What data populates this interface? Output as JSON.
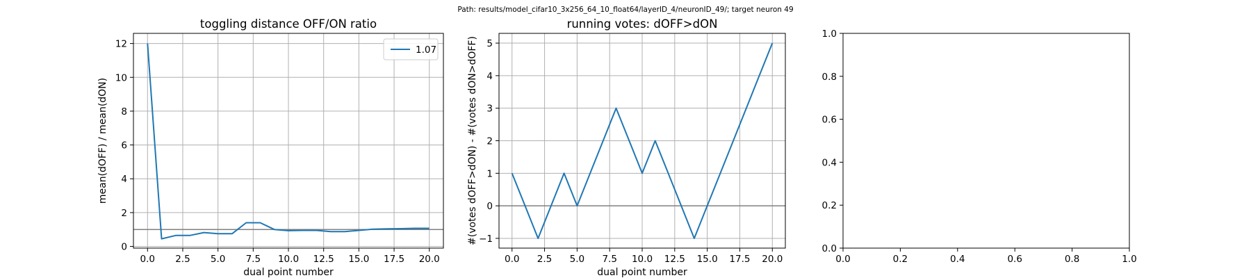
{
  "suptitle": "Path: results/model_cifar10_3x256_64_10_float64/layerID_4/neuronID_49/; target neuron 49",
  "colors": {
    "series": "#1f77b4",
    "refline": "#808080"
  },
  "chart_data": [
    {
      "type": "line",
      "title": "toggling distance OFF/ON ratio",
      "xlabel": "dual point number",
      "ylabel": "mean(dOFF) / mean(dON)",
      "xlim": [
        -1,
        21
      ],
      "ylim": [
        -0.1,
        12.6
      ],
      "xticks": [
        0,
        2.5,
        5,
        7.5,
        10,
        12.5,
        15,
        17.5,
        20
      ],
      "xtick_labels": [
        "0.0",
        "2.5",
        "5.0",
        "7.5",
        "10.0",
        "12.5",
        "15.0",
        "17.5",
        "20.0"
      ],
      "yticks": [
        0,
        2,
        4,
        6,
        8,
        10,
        12
      ],
      "ytick_labels": [
        "0",
        "2",
        "4",
        "6",
        "8",
        "10",
        "12"
      ],
      "grid": true,
      "hline": 1,
      "legend": {
        "placement": "upper right",
        "entries": [
          "1.07"
        ]
      },
      "series": [
        {
          "name": "1.07",
          "x": [
            0,
            1,
            2,
            3,
            4,
            5,
            6,
            7,
            8,
            9,
            10,
            11,
            12,
            13,
            14,
            15,
            16,
            17,
            18,
            19,
            20
          ],
          "y": [
            12.0,
            0.45,
            0.65,
            0.65,
            0.82,
            0.75,
            0.75,
            1.4,
            1.4,
            1.0,
            0.93,
            0.95,
            0.95,
            0.88,
            0.88,
            0.95,
            1.02,
            1.04,
            1.05,
            1.07,
            1.07
          ]
        }
      ]
    },
    {
      "type": "line",
      "title": "running votes: dOFF>dON",
      "xlabel": "dual point number",
      "ylabel": "#(votes dOFF>dON) - #(votes dON>dOFF)",
      "xlim": [
        -1,
        21
      ],
      "ylim": [
        -1.3,
        5.3
      ],
      "xticks": [
        0,
        2.5,
        5,
        7.5,
        10,
        12.5,
        15,
        17.5,
        20
      ],
      "xtick_labels": [
        "0.0",
        "2.5",
        "5.0",
        "7.5",
        "10.0",
        "12.5",
        "15.0",
        "17.5",
        "20.0"
      ],
      "yticks": [
        -1,
        0,
        1,
        2,
        3,
        4,
        5
      ],
      "ytick_labels": [
        "−1",
        "0",
        "1",
        "2",
        "3",
        "4",
        "5"
      ],
      "grid": true,
      "hline": 0,
      "series": [
        {
          "x": [
            0,
            1,
            2,
            3,
            4,
            5,
            6,
            7,
            8,
            9,
            10,
            11,
            12,
            13,
            14,
            15,
            16,
            17,
            18,
            19,
            20
          ],
          "y": [
            1,
            0,
            -1,
            0,
            1,
            0,
            1,
            2,
            3,
            2,
            1,
            2,
            1,
            0,
            -1,
            0,
            1,
            2,
            3,
            4,
            5
          ]
        }
      ]
    },
    {
      "type": "line",
      "title": "",
      "xlabel": "",
      "ylabel": "",
      "xlim": [
        0,
        1
      ],
      "ylim": [
        0,
        1
      ],
      "xticks": [
        0,
        0.2,
        0.4,
        0.6,
        0.8,
        1.0
      ],
      "xtick_labels": [
        "0.0",
        "0.2",
        "0.4",
        "0.6",
        "0.8",
        "1.0"
      ],
      "yticks": [
        0,
        0.2,
        0.4,
        0.6,
        0.8,
        1.0
      ],
      "ytick_labels": [
        "0.0",
        "0.2",
        "0.4",
        "0.6",
        "0.8",
        "1.0"
      ],
      "grid": false,
      "series": []
    }
  ]
}
